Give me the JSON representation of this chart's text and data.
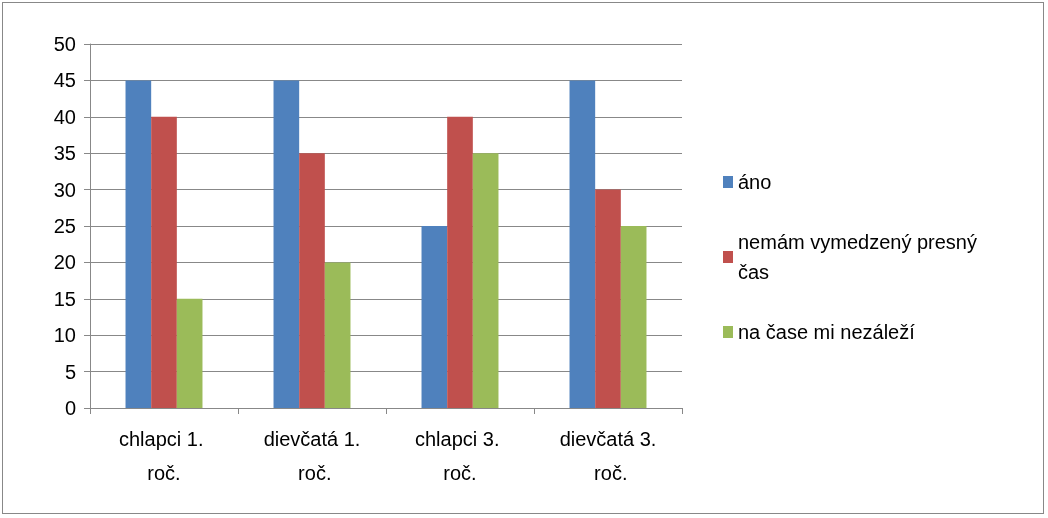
{
  "chart_data": {
    "type": "bar",
    "categories": [
      "chlapci 1. roč.",
      "dievčatá 1. roč.",
      "chlapci 3. roč.",
      "dievčatá 3. roč."
    ],
    "series": [
      {
        "name": "áno",
        "color": "#4f81bd",
        "values": [
          45,
          45,
          25,
          45
        ]
      },
      {
        "name": "nemám vymedzený presný čas",
        "color": "#c0504d",
        "values": [
          40,
          35,
          40,
          30
        ]
      },
      {
        "name": "na čase mi nezáleží",
        "color": "#9bbb59",
        "values": [
          15,
          20,
          35,
          25
        ]
      }
    ],
    "ylim": [
      0,
      50
    ],
    "yticks": [
      0,
      5,
      10,
      15,
      20,
      25,
      30,
      35,
      40,
      45,
      50
    ],
    "grid": "y",
    "legend": "right"
  }
}
